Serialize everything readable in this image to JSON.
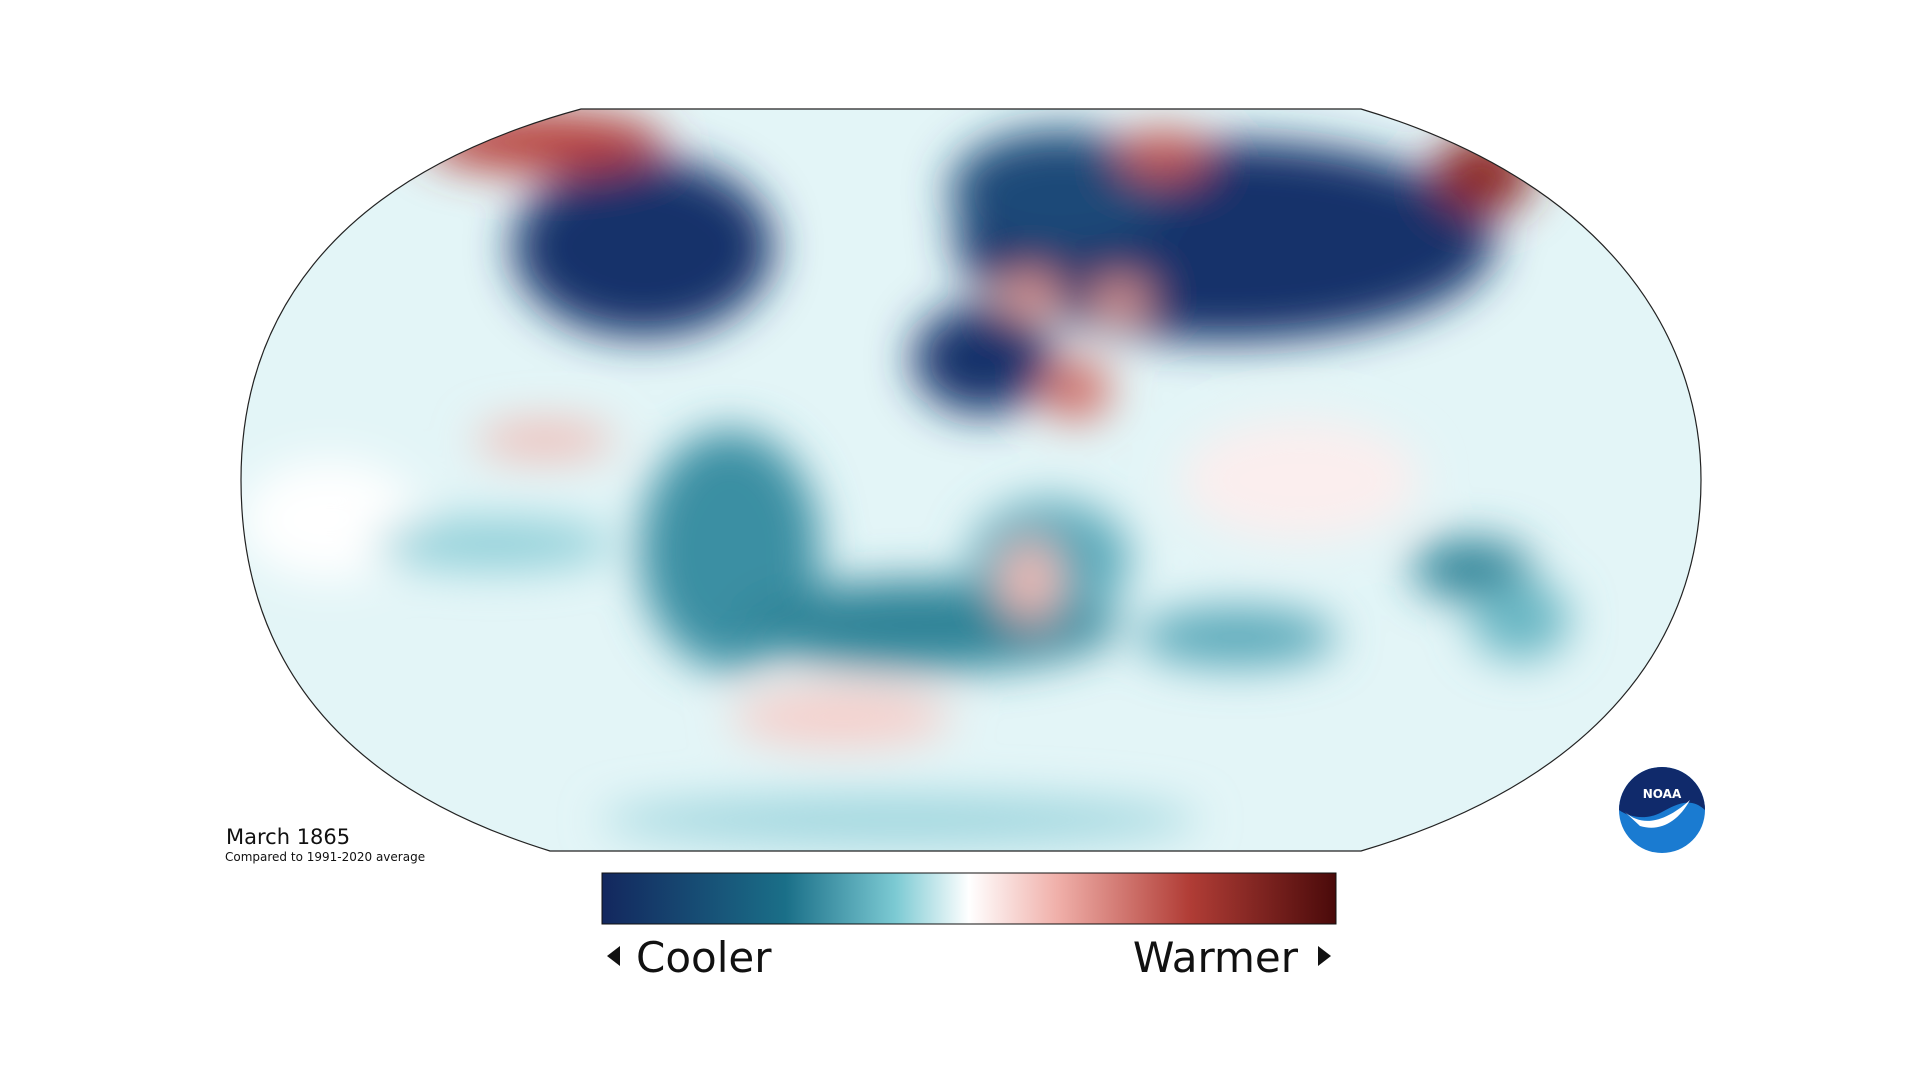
{
  "map": {
    "title": "March 1865",
    "subtitle": "Compared to 1991-2020 average"
  },
  "legend": {
    "low_label": "Cooler",
    "high_label": "Warmer"
  },
  "logo": {
    "text": "NOAA"
  }
}
